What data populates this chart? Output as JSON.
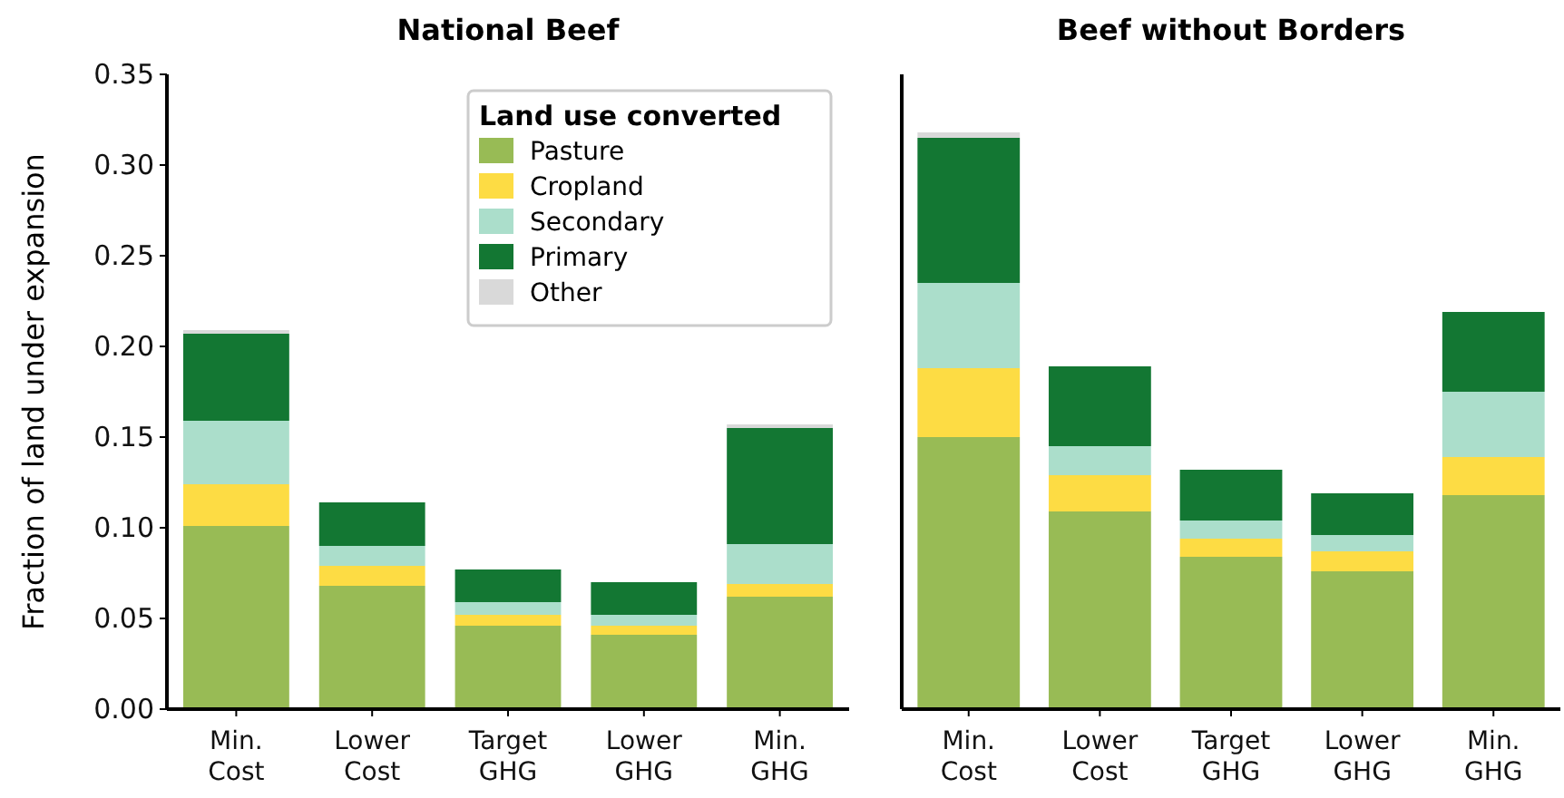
{
  "chart_data": [
    {
      "type": "bar",
      "title": "National Beef",
      "ylabel": "Fraction of land under expansion",
      "legend_title": "Land use converted",
      "legend": "top right",
      "stacked": true,
      "grid": false,
      "categories": [
        "Min. Cost",
        "Lower Cost",
        "Target GHG",
        "Lower GHG",
        "Min. GHG"
      ],
      "ylim": [
        0,
        0.35
      ],
      "yticks": [
        {
          "value": 0,
          "label": "0.00"
        },
        {
          "value": 0.05,
          "label": "0.05"
        },
        {
          "value": 0.1,
          "label": "0.10"
        },
        {
          "value": 0.15,
          "label": "0.15"
        },
        {
          "value": 0.2,
          "label": "0.20"
        },
        {
          "value": 0.25,
          "label": "0.25"
        },
        {
          "value": 0.3,
          "label": "0.30"
        },
        {
          "value": 0.35,
          "label": "0.35"
        }
      ],
      "series": [
        {
          "name": "Pasture",
          "color": "#98bb55",
          "values": [
            0.101,
            0.068,
            0.046,
            0.041,
            0.062
          ]
        },
        {
          "name": "Cropland",
          "color": "#fddc44",
          "values": [
            0.023,
            0.011,
            0.006,
            0.005,
            0.007
          ]
        },
        {
          "name": "Secondary",
          "color": "#abdecb",
          "values": [
            0.035,
            0.011,
            0.007,
            0.006,
            0.022
          ]
        },
        {
          "name": "Primary",
          "color": "#137733",
          "values": [
            0.048,
            0.024,
            0.018,
            0.018,
            0.064
          ]
        },
        {
          "name": "Other",
          "color": "#d9d9d9",
          "values": [
            0.002,
            null,
            null,
            null,
            0.002
          ]
        }
      ]
    },
    {
      "type": "bar",
      "title": "Beef without Borders",
      "stacked": true,
      "grid": false,
      "tick_labels": "x",
      "categories": [
        "Min. Cost",
        "Lower Cost",
        "Target GHG",
        "Lower GHG",
        "Min. GHG"
      ],
      "ylim": [
        0,
        0.35
      ],
      "series": [
        {
          "color": "#98bb55",
          "values": [
            0.15,
            0.109,
            0.084,
            0.076,
            0.118
          ]
        },
        {
          "color": "#fddc44",
          "values": [
            0.038,
            0.02,
            0.01,
            0.011,
            0.021
          ]
        },
        {
          "color": "#abdecb",
          "values": [
            0.047,
            0.016,
            0.01,
            0.009,
            0.036
          ]
        },
        {
          "color": "#137733",
          "values": [
            0.08,
            0.044,
            0.028,
            0.023,
            0.044
          ]
        },
        {
          "color": "#d9d9d9",
          "values": [
            0.003,
            null,
            null,
            null,
            null
          ]
        }
      ]
    }
  ]
}
